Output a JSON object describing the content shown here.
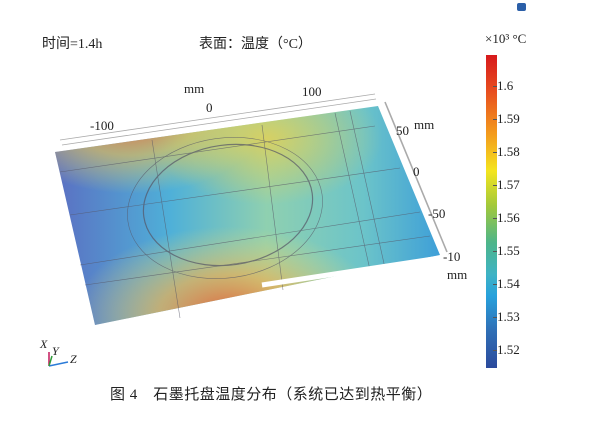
{
  "header": {
    "time_label": "时间=1.4h",
    "plot_title": "表面：温度（°C）"
  },
  "colorbar": {
    "unit": "×10³ °C",
    "ticks": [
      "1.6",
      "1.59",
      "1.58",
      "1.57",
      "1.56",
      "1.55",
      "1.54",
      "1.53",
      "1.52"
    ],
    "colors": [
      "#d7191c",
      "#f39a1d",
      "#f4e51f",
      "#4db58a",
      "#27a1dc",
      "#2b4a9c"
    ]
  },
  "axes": {
    "top_unit": "mm",
    "top_ticks": [
      "-100",
      "0",
      "100"
    ],
    "side_unit": "mm",
    "side_ticks": [
      "50",
      "0",
      "-50",
      "-10"
    ],
    "bottom_unit": "mm",
    "triad": {
      "x": "X",
      "y": "Y",
      "z": "Z"
    }
  },
  "caption": "图 4　石墨托盘温度分布（系统已达到热平衡）"
}
